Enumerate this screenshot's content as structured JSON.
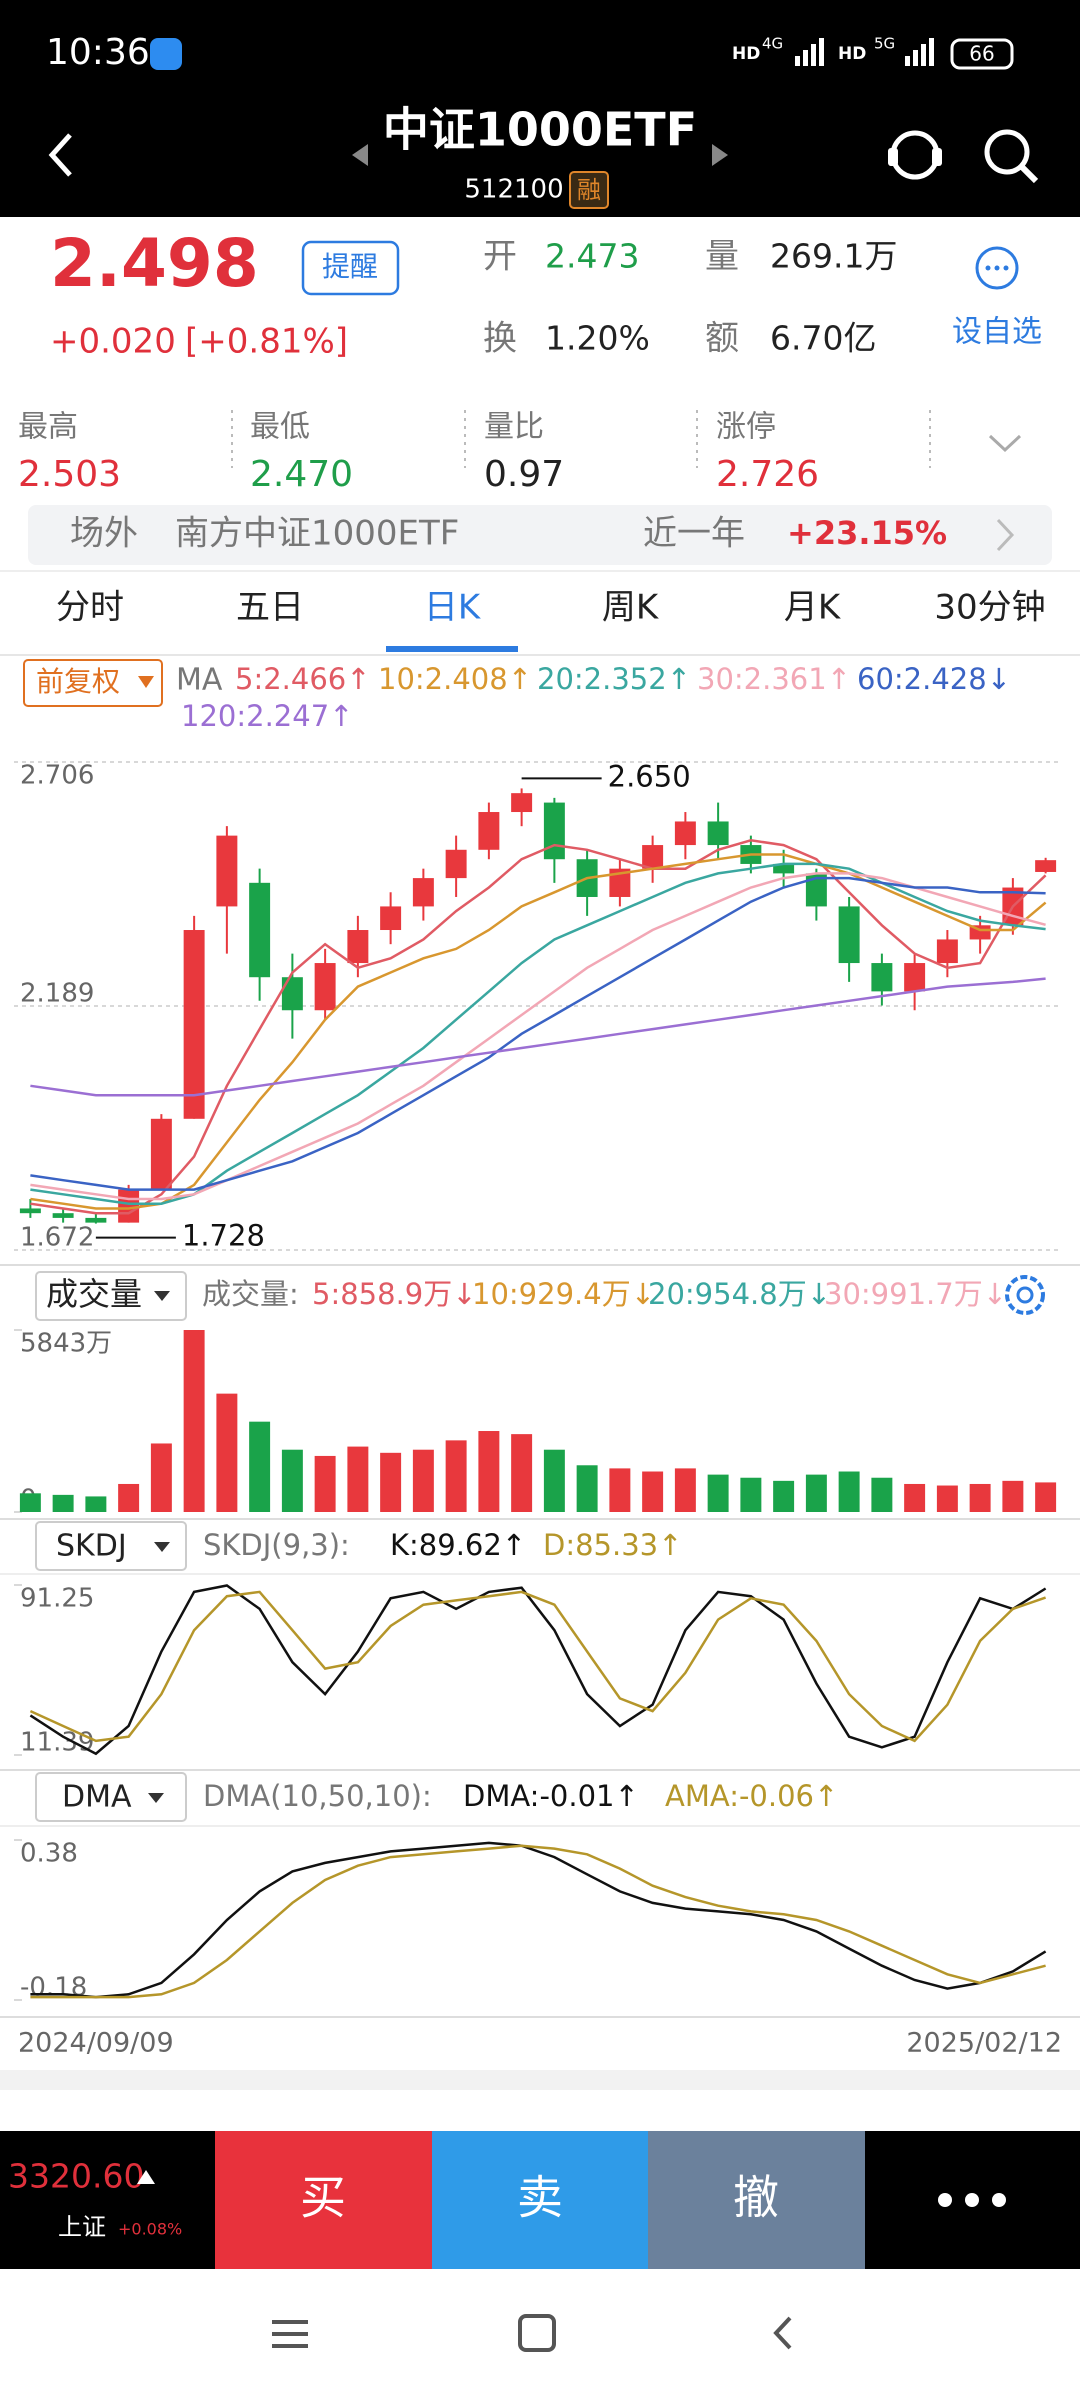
{
  "status_bar": {
    "time": "10:36",
    "signal_labels": [
      "HD",
      "4G",
      "HD",
      "5G"
    ],
    "battery": "66"
  },
  "header": {
    "title": "中证1000ETF",
    "code": "512100",
    "badge": "融"
  },
  "quote": {
    "price": "2.498",
    "change": "+0.020",
    "change_pct": "[+0.81%]",
    "alert_button": "提醒",
    "open_label": "开",
    "open": "2.473",
    "volume_label": "量",
    "volume": "269.1万",
    "turnover_label": "换",
    "turnover": "1.20%",
    "amount_label": "额",
    "amount": "6.70亿",
    "watch_label": "设自选"
  },
  "stats": [
    {
      "label": "最高",
      "value": "2.503",
      "color": "#e0303b"
    },
    {
      "label": "最低",
      "value": "2.470",
      "color": "#1f9e4a"
    },
    {
      "label": "量比",
      "value": "0.97",
      "color": "#222222"
    },
    {
      "label": "涨停",
      "value": "2.726",
      "color": "#e0303b"
    }
  ],
  "banner": {
    "tag": "场外",
    "name": "南方中证1000ETF",
    "period": "近一年",
    "return": "+23.15%"
  },
  "tabs": [
    "分时",
    "五日",
    "日K",
    "周K",
    "月K",
    "30分钟"
  ],
  "active_tab": 2,
  "chart_data": [
    {
      "type": "candlestick",
      "adjust_button": "前复权",
      "legend_prefix": "MA",
      "up_color": "#e8383d",
      "down_color": "#1aa34a",
      "open": [
        1.76,
        1.75,
        1.74,
        1.73,
        1.8,
        1.95,
        2.4,
        2.45,
        2.25,
        2.18,
        2.28,
        2.35,
        2.4,
        2.46,
        2.52,
        2.6,
        2.62,
        2.5,
        2.42,
        2.48,
        2.53,
        2.58,
        2.53,
        2.49,
        2.47,
        2.4,
        2.28,
        2.22,
        2.28,
        2.33,
        2.36,
        2.473
      ],
      "close": [
        1.75,
        1.74,
        1.73,
        1.8,
        1.95,
        2.35,
        2.55,
        2.25,
        2.18,
        2.28,
        2.35,
        2.4,
        2.46,
        2.52,
        2.6,
        2.64,
        2.5,
        2.42,
        2.48,
        2.53,
        2.58,
        2.53,
        2.49,
        2.47,
        2.4,
        2.28,
        2.22,
        2.28,
        2.33,
        2.36,
        2.44,
        2.498
      ],
      "high": [
        1.78,
        1.76,
        1.75,
        1.81,
        1.96,
        2.38,
        2.57,
        2.48,
        2.3,
        2.31,
        2.38,
        2.43,
        2.48,
        2.55,
        2.62,
        2.65,
        2.63,
        2.52,
        2.5,
        2.55,
        2.6,
        2.62,
        2.55,
        2.52,
        2.48,
        2.42,
        2.3,
        2.3,
        2.35,
        2.38,
        2.46,
        2.503
      ],
      "low": [
        1.74,
        1.73,
        1.728,
        1.73,
        1.8,
        1.95,
        2.3,
        2.2,
        2.12,
        2.16,
        2.25,
        2.32,
        2.37,
        2.42,
        2.5,
        2.57,
        2.45,
        2.38,
        2.4,
        2.45,
        2.5,
        2.5,
        2.47,
        2.44,
        2.37,
        2.24,
        2.19,
        2.18,
        2.25,
        2.3,
        2.34,
        2.47
      ],
      "series": [
        {
          "name": "5:2.466↑",
          "color": "#e05b64",
          "values": [
            1.77,
            1.76,
            1.75,
            1.75,
            1.79,
            1.87,
            2.02,
            2.14,
            2.26,
            2.32,
            2.27,
            2.29,
            2.33,
            2.39,
            2.44,
            2.5,
            2.53,
            2.52,
            2.5,
            2.48,
            2.48,
            2.52,
            2.54,
            2.53,
            2.5,
            2.43,
            2.36,
            2.3,
            2.27,
            2.28,
            2.4,
            2.466
          ]
        },
        {
          "name": "10:2.408↑",
          "color": "#d8972f",
          "values": [
            1.78,
            1.77,
            1.76,
            1.76,
            1.77,
            1.81,
            1.9,
            1.99,
            2.07,
            2.16,
            2.23,
            2.26,
            2.29,
            2.31,
            2.35,
            2.4,
            2.43,
            2.46,
            2.47,
            2.48,
            2.49,
            2.5,
            2.51,
            2.51,
            2.49,
            2.47,
            2.44,
            2.41,
            2.38,
            2.35,
            2.35,
            2.408
          ]
        },
        {
          "name": "20:2.352↑",
          "color": "#3aa7a0",
          "values": [
            1.8,
            1.79,
            1.78,
            1.77,
            1.77,
            1.79,
            1.84,
            1.88,
            1.92,
            1.96,
            2.0,
            2.05,
            2.1,
            2.16,
            2.22,
            2.28,
            2.33,
            2.36,
            2.39,
            2.42,
            2.45,
            2.47,
            2.48,
            2.49,
            2.49,
            2.48,
            2.45,
            2.42,
            2.39,
            2.37,
            2.36,
            2.352
          ]
        },
        {
          "name": "30:2.361↑",
          "color": "#f2a7b5",
          "values": [
            1.81,
            1.8,
            1.79,
            1.78,
            1.78,
            1.79,
            1.82,
            1.85,
            1.88,
            1.91,
            1.94,
            1.98,
            2.02,
            2.07,
            2.12,
            2.17,
            2.22,
            2.27,
            2.31,
            2.35,
            2.38,
            2.41,
            2.44,
            2.46,
            2.47,
            2.47,
            2.46,
            2.44,
            2.42,
            2.4,
            2.38,
            2.361
          ]
        },
        {
          "name": "60:2.428↓",
          "color": "#3a63c4",
          "values": [
            1.83,
            1.82,
            1.81,
            1.8,
            1.8,
            1.8,
            1.82,
            1.84,
            1.86,
            1.89,
            1.92,
            1.96,
            2.0,
            2.04,
            2.08,
            2.13,
            2.17,
            2.21,
            2.25,
            2.29,
            2.33,
            2.37,
            2.41,
            2.44,
            2.46,
            2.46,
            2.45,
            2.44,
            2.44,
            2.43,
            2.43,
            2.428
          ]
        },
        {
          "name": "120:2.247↑",
          "color": "#9b6fd3",
          "values": [
            2.02,
            2.01,
            2.0,
            2.0,
            2.0,
            2.0,
            2.01,
            2.02,
            2.03,
            2.04,
            2.05,
            2.06,
            2.07,
            2.08,
            2.09,
            2.1,
            2.11,
            2.12,
            2.13,
            2.14,
            2.15,
            2.16,
            2.17,
            2.18,
            2.19,
            2.2,
            2.21,
            2.22,
            2.23,
            2.235,
            2.24,
            2.247
          ]
        }
      ],
      "ylim": [
        1.672,
        2.706
      ],
      "yticks": [
        2.706,
        2.189,
        1.672
      ],
      "grid": true,
      "annotations": [
        {
          "value": 2.65,
          "label": "2.650"
        },
        {
          "value": 1.728,
          "label": "1.728"
        }
      ]
    },
    {
      "type": "bar",
      "selector": "成交量",
      "legend_prefix": "成交量:",
      "up_color": "#e8383d",
      "down_color": "#1aa34a",
      "legend": [
        {
          "name": "5:858.9万↓",
          "color": "#e05b64"
        },
        {
          "name": "10:929.4万↓",
          "color": "#d8972f"
        },
        {
          "name": "20:954.8万↓",
          "color": "#3aa7a0"
        },
        {
          "name": "30:991.7万↓",
          "color": "#f2a7b5"
        }
      ],
      "values": [
        600,
        550,
        500,
        900,
        2200,
        5843,
        3800,
        2900,
        2000,
        1800,
        2100,
        1900,
        2000,
        2300,
        2600,
        2500,
        2000,
        1500,
        1400,
        1300,
        1400,
        1200,
        1100,
        1000,
        1200,
        1300,
        1100,
        900,
        850,
        900,
        1000,
        950
      ],
      "ylim": [
        0,
        5843
      ],
      "yticks": [
        {
          "value": 5843,
          "label": "5843万"
        },
        0
      ]
    },
    {
      "type": "line",
      "selector": "SKDJ",
      "legend_prefix": "SKDJ(9,3):",
      "series": [
        {
          "name": "K:89.62↑",
          "color": "#111111",
          "values": [
            30,
            20,
            12,
            25,
            60,
            88,
            91,
            80,
            55,
            40,
            60,
            85,
            88,
            80,
            88,
            90,
            70,
            40,
            25,
            35,
            70,
            88,
            86,
            75,
            45,
            20,
            15,
            20,
            55,
            85,
            80,
            89.62
          ]
        },
        {
          "name": "D:85.33↑",
          "color": "#b5962a",
          "values": [
            32,
            25,
            18,
            20,
            40,
            70,
            86,
            88,
            70,
            52,
            55,
            72,
            82,
            84,
            86,
            88,
            82,
            60,
            38,
            32,
            50,
            75,
            85,
            82,
            65,
            40,
            25,
            18,
            35,
            65,
            80,
            85.33
          ]
        }
      ],
      "ylim": [
        11.39,
        91.25
      ],
      "yticks": [
        91.25,
        11.39
      ]
    },
    {
      "type": "line",
      "selector": "DMA",
      "legend_prefix": "DMA(10,50,10):",
      "series": [
        {
          "name": "DMA:-0.01↑",
          "color": "#111111",
          "values": [
            -0.16,
            -0.16,
            -0.17,
            -0.16,
            -0.12,
            -0.02,
            0.1,
            0.2,
            0.27,
            0.3,
            0.32,
            0.34,
            0.35,
            0.36,
            0.37,
            0.36,
            0.32,
            0.26,
            0.2,
            0.16,
            0.14,
            0.13,
            0.12,
            0.1,
            0.06,
            0.0,
            -0.06,
            -0.11,
            -0.14,
            -0.12,
            -0.08,
            -0.01
          ]
        },
        {
          "name": "AMA:-0.06↑",
          "color": "#b5962a",
          "values": [
            -0.17,
            -0.17,
            -0.17,
            -0.17,
            -0.16,
            -0.12,
            -0.04,
            0.06,
            0.16,
            0.24,
            0.29,
            0.32,
            0.33,
            0.34,
            0.35,
            0.36,
            0.35,
            0.33,
            0.28,
            0.22,
            0.18,
            0.15,
            0.13,
            0.12,
            0.1,
            0.06,
            0.01,
            -0.04,
            -0.09,
            -0.12,
            -0.09,
            -0.06
          ]
        }
      ],
      "ylim": [
        -0.18,
        0.38
      ],
      "yticks": [
        0.38,
        -0.18
      ],
      "x_labels": [
        "2024/09/09",
        "2025/02/12"
      ]
    }
  ],
  "bottom_bar": {
    "index_value": "3320.60",
    "index_name": "上证",
    "index_change": "+0.08%",
    "buttons": [
      "买",
      "卖",
      "撤"
    ]
  }
}
